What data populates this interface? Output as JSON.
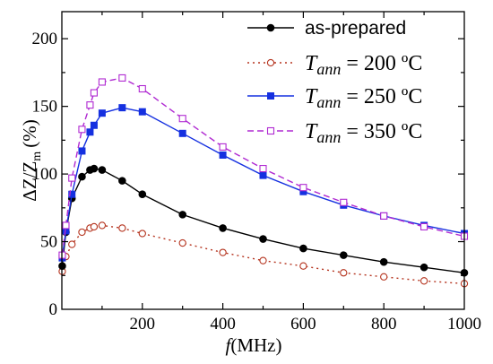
{
  "chart_data": {
    "type": "line",
    "xlabel_var": "f",
    "xlabel_unit": "(MHz)",
    "ylabel_main": "ΔZ/Z",
    "ylabel_sub": "m",
    "ylabel_unit": "(%)",
    "xlim": [
      0,
      1000
    ],
    "ylim": [
      0,
      220
    ],
    "xticks": [
      200,
      400,
      600,
      800,
      1000
    ],
    "yticks": [
      0,
      50,
      100,
      150,
      200
    ],
    "grid": false,
    "legend_position": "top-right",
    "series": [
      {
        "name": "as-prepared",
        "legend_plain": "as-prepared",
        "color": "#000000",
        "line": "solid",
        "marker": "circle-filled",
        "x": [
          1,
          10,
          25,
          50,
          70,
          80,
          100,
          150,
          200,
          300,
          400,
          500,
          600,
          700,
          800,
          900,
          1000
        ],
        "y": [
          32,
          57,
          82,
          98,
          103,
          104,
          103,
          95,
          85,
          70,
          60,
          52,
          45,
          40,
          35,
          31,
          27
        ]
      },
      {
        "name": "T_ann = 200 °C",
        "legend_var": "T",
        "legend_sub": "ann",
        "legend_value": " = 200 ºC",
        "color": "#b5341f",
        "line": "dotted",
        "marker": "circle-open",
        "x": [
          1,
          10,
          25,
          50,
          70,
          80,
          100,
          150,
          200,
          300,
          400,
          500,
          600,
          700,
          800,
          900,
          1000
        ],
        "y": [
          28,
          39,
          48,
          57,
          60,
          61,
          62,
          60,
          56,
          49,
          42,
          36,
          32,
          27,
          24,
          21,
          19
        ]
      },
      {
        "name": "T_ann = 250 °C",
        "legend_var": "T",
        "legend_sub": "ann",
        "legend_value": " = 250 ºC",
        "color": "#1530e0",
        "line": "solid",
        "marker": "square-filled",
        "x": [
          1,
          10,
          25,
          50,
          70,
          80,
          100,
          150,
          200,
          300,
          400,
          500,
          600,
          700,
          800,
          900,
          1000
        ],
        "y": [
          38,
          58,
          85,
          117,
          131,
          136,
          145,
          149,
          146,
          130,
          114,
          99,
          87,
          77,
          69,
          62,
          56
        ]
      },
      {
        "name": "T_ann = 350 °C",
        "legend_var": "T",
        "legend_sub": "ann",
        "legend_value": " = 350 ºC",
        "color": "#b02ad2",
        "line": "dashed",
        "marker": "square-open",
        "x": [
          1,
          10,
          25,
          50,
          70,
          80,
          100,
          150,
          200,
          300,
          400,
          500,
          600,
          700,
          800,
          900,
          1000
        ],
        "y": [
          40,
          62,
          97,
          133,
          151,
          160,
          168,
          171,
          163,
          141,
          120,
          104,
          90,
          79,
          69,
          61,
          54
        ]
      }
    ]
  }
}
